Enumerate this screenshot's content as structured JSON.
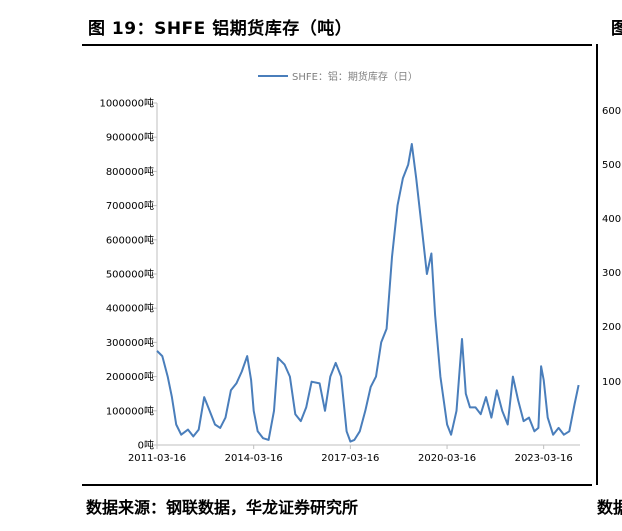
{
  "figure": {
    "title": "图 19：SHFE 铝期货库存（吨）",
    "source": "数据来源：钢联数据，华龙证券研究所"
  },
  "side_panel": {
    "title_fragment": "图",
    "source_fragment": "数据",
    "ticks": [
      "600",
      "500",
      "400",
      "300",
      "200",
      "100"
    ]
  },
  "colors": {
    "series": "#4a7ebb",
    "axis": "#bfbfbf",
    "text": "#000000"
  },
  "chart_data": {
    "type": "line",
    "legend_position": "top",
    "grid": false,
    "ylim": [
      0,
      1000000
    ],
    "ytick_labels": [
      "0吨",
      "100000吨",
      "200000吨",
      "300000吨",
      "400000吨",
      "500000吨",
      "600000吨",
      "700000吨",
      "800000吨",
      "900000吨",
      "1000000吨"
    ],
    "xlim": [
      "2011-03-16",
      "2024-05-01"
    ],
    "xtick_labels": [
      "2011-03-16",
      "2014-03-16",
      "2017-03-16",
      "2020-03-16",
      "2023-03-16"
    ],
    "series": [
      {
        "name": "SHFE：铝：期货库存（日）",
        "points": [
          [
            "2011-03-16",
            275000
          ],
          [
            "2011-05-15",
            260000
          ],
          [
            "2011-07-15",
            200000
          ],
          [
            "2011-09-01",
            140000
          ],
          [
            "2011-10-20",
            60000
          ],
          [
            "2011-12-15",
            30000
          ],
          [
            "2012-03-01",
            45000
          ],
          [
            "2012-05-01",
            25000
          ],
          [
            "2012-07-01",
            45000
          ],
          [
            "2012-09-01",
            140000
          ],
          [
            "2012-11-01",
            100000
          ],
          [
            "2013-01-01",
            60000
          ],
          [
            "2013-03-01",
            50000
          ],
          [
            "2013-05-01",
            80000
          ],
          [
            "2013-07-01",
            160000
          ],
          [
            "2013-09-01",
            180000
          ],
          [
            "2013-11-01",
            215000
          ],
          [
            "2014-01-01",
            260000
          ],
          [
            "2014-02-15",
            190000
          ],
          [
            "2014-03-16",
            100000
          ],
          [
            "2014-05-01",
            40000
          ],
          [
            "2014-07-01",
            20000
          ],
          [
            "2014-09-01",
            15000
          ],
          [
            "2014-11-01",
            100000
          ],
          [
            "2014-12-15",
            255000
          ],
          [
            "2015-03-01",
            235000
          ],
          [
            "2015-05-01",
            200000
          ],
          [
            "2015-07-01",
            90000
          ],
          [
            "2015-09-01",
            70000
          ],
          [
            "2015-11-01",
            110000
          ],
          [
            "2016-01-01",
            185000
          ],
          [
            "2016-04-01",
            180000
          ],
          [
            "2016-06-01",
            100000
          ],
          [
            "2016-08-01",
            200000
          ],
          [
            "2016-10-01",
            240000
          ],
          [
            "2016-12-01",
            200000
          ],
          [
            "2017-02-01",
            40000
          ],
          [
            "2017-03-16",
            10000
          ],
          [
            "2017-05-01",
            15000
          ],
          [
            "2017-07-01",
            40000
          ],
          [
            "2017-09-01",
            100000
          ],
          [
            "2017-11-01",
            170000
          ],
          [
            "2018-01-01",
            200000
          ],
          [
            "2018-03-01",
            300000
          ],
          [
            "2018-05-01",
            340000
          ],
          [
            "2018-07-01",
            550000
          ],
          [
            "2018-09-01",
            700000
          ],
          [
            "2018-11-01",
            780000
          ],
          [
            "2019-01-01",
            820000
          ],
          [
            "2019-02-10",
            880000
          ],
          [
            "2019-04-01",
            780000
          ],
          [
            "2019-06-01",
            640000
          ],
          [
            "2019-08-01",
            500000
          ],
          [
            "2019-09-20",
            560000
          ],
          [
            "2019-11-01",
            380000
          ],
          [
            "2020-01-01",
            200000
          ],
          [
            "2020-03-16",
            60000
          ],
          [
            "2020-05-01",
            30000
          ],
          [
            "2020-07-01",
            100000
          ],
          [
            "2020-09-01",
            310000
          ],
          [
            "2020-10-15",
            150000
          ],
          [
            "2020-12-01",
            110000
          ],
          [
            "2021-02-01",
            110000
          ],
          [
            "2021-04-01",
            90000
          ],
          [
            "2021-06-01",
            140000
          ],
          [
            "2021-08-01",
            80000
          ],
          [
            "2021-10-01",
            160000
          ],
          [
            "2021-12-01",
            100000
          ],
          [
            "2022-02-01",
            60000
          ],
          [
            "2022-04-01",
            200000
          ],
          [
            "2022-06-01",
            130000
          ],
          [
            "2022-08-01",
            70000
          ],
          [
            "2022-10-01",
            80000
          ],
          [
            "2022-12-01",
            40000
          ],
          [
            "2023-01-15",
            50000
          ],
          [
            "2023-02-15",
            230000
          ],
          [
            "2023-03-16",
            190000
          ],
          [
            "2023-05-01",
            80000
          ],
          [
            "2023-07-01",
            30000
          ],
          [
            "2023-09-01",
            50000
          ],
          [
            "2023-11-01",
            30000
          ],
          [
            "2024-01-01",
            40000
          ],
          [
            "2024-03-01",
            120000
          ],
          [
            "2024-04-15",
            175000
          ]
        ]
      }
    ]
  }
}
